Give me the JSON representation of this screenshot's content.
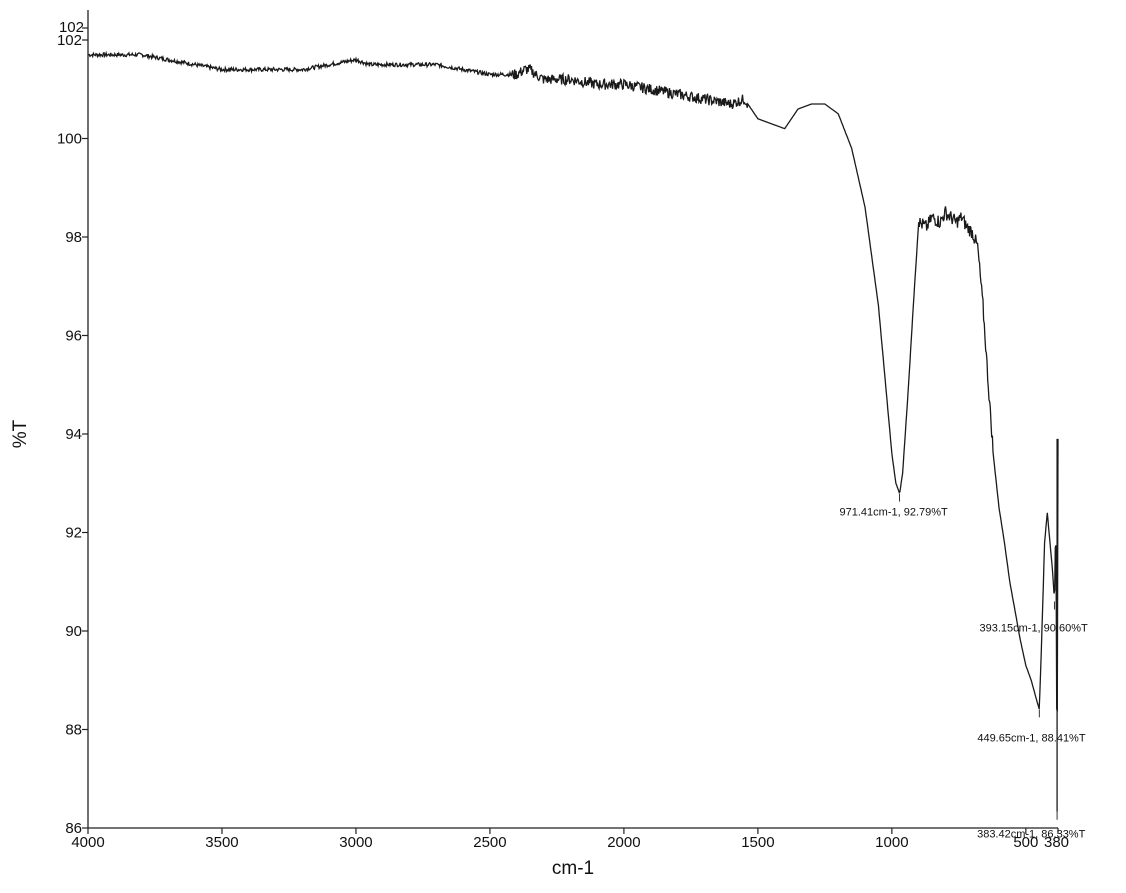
{
  "chart_data": {
    "type": "line",
    "title": "",
    "xlabel": "cm-1",
    "ylabel": "%T",
    "xlim": [
      4000,
      380
    ],
    "ylim": [
      86,
      102
    ],
    "x_reversed": true,
    "grid": false,
    "x_ticks": [
      4000,
      3500,
      3000,
      2500,
      2000,
      1500,
      1000,
      500,
      380
    ],
    "x_tick_labels": [
      "4000",
      "3500",
      "3000",
      "2500",
      "2000",
      "1500",
      "1000",
      "500",
      "380"
    ],
    "y_ticks": [
      86,
      88,
      90,
      92,
      94,
      96,
      98,
      100,
      102
    ],
    "y_tick_labels": [
      "86",
      "88",
      "90",
      "92",
      "94",
      "96",
      "98",
      "100",
      "102"
    ],
    "y_top_tick_label": "102",
    "series": [
      {
        "x": [
          4000,
          3900,
          3800,
          3700,
          3600,
          3500,
          3400,
          3300,
          3200,
          3100,
          3000,
          2950,
          2900,
          2800,
          2700,
          2600,
          2500,
          2450,
          2400,
          2370,
          2350,
          2330,
          2300,
          2200,
          2100,
          2000,
          1900,
          1800,
          1700,
          1600,
          1550,
          1500,
          1450,
          1400,
          1350,
          1300,
          1250,
          1200,
          1150,
          1100,
          1050,
          1020,
          1000,
          985,
          971,
          960,
          940,
          920,
          900,
          870,
          850,
          820,
          800,
          780,
          760,
          740,
          720,
          700,
          680,
          660,
          640,
          620,
          600,
          580,
          560,
          540,
          520,
          500,
          480,
          470,
          460,
          449.65,
          440,
          430,
          420,
          410,
          400,
          393.15,
          388,
          383.42,
          380
        ],
        "y": [
          101.7,
          101.7,
          101.7,
          101.6,
          101.5,
          101.4,
          101.4,
          101.4,
          101.4,
          101.5,
          101.6,
          101.5,
          101.5,
          101.5,
          101.5,
          101.4,
          101.3,
          101.3,
          101.3,
          101.4,
          101.4,
          101.3,
          101.2,
          101.2,
          101.1,
          101.1,
          101.0,
          100.9,
          100.8,
          100.7,
          100.8,
          100.4,
          100.3,
          100.2,
          100.6,
          100.7,
          100.7,
          100.5,
          99.8,
          98.6,
          96.6,
          94.8,
          93.6,
          93.0,
          92.79,
          93.2,
          94.8,
          96.6,
          98.3,
          98.2,
          98.4,
          98.3,
          98.5,
          98.4,
          98.3,
          98.4,
          98.2,
          98.1,
          97.8,
          96.6,
          95.0,
          93.5,
          92.5,
          91.8,
          91.0,
          90.4,
          89.8,
          89.3,
          89.0,
          88.8,
          88.6,
          88.41,
          90.0,
          91.8,
          92.4,
          91.8,
          91.2,
          90.6,
          92.4,
          86.33,
          93.9
        ],
        "noise_from": 2420,
        "noise_to": 1540
      }
    ],
    "annotations": [
      {
        "text": "971.41cm-1, 92.79%T",
        "x": 971.41,
        "y": 92.79
      },
      {
        "text": "393.15cm-1, 90.60%T",
        "x": 393.15,
        "y": 90.6
      },
      {
        "text": "449.65cm-1, 88.41%T",
        "x": 449.65,
        "y": 88.41
      },
      {
        "text": "383.42cm-1, 86.33%T",
        "x": 383.42,
        "y": 86.33
      }
    ]
  }
}
